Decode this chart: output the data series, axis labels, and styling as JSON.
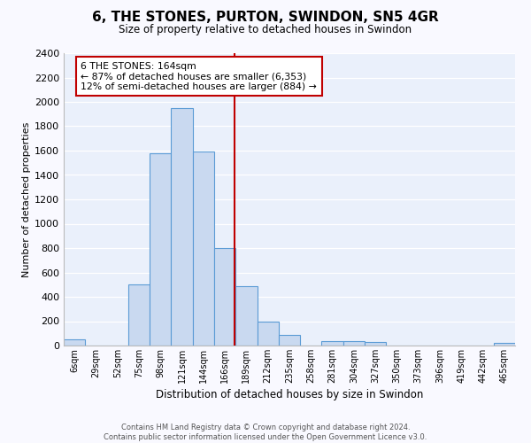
{
  "title": "6, THE STONES, PURTON, SWINDON, SN5 4GR",
  "subtitle": "Size of property relative to detached houses in Swindon",
  "xlabel": "Distribution of detached houses by size in Swindon",
  "ylabel": "Number of detached properties",
  "footer_line1": "Contains HM Land Registry data © Crown copyright and database right 2024.",
  "footer_line2": "Contains public sector information licensed under the Open Government Licence v3.0.",
  "bin_labels": [
    "6sqm",
    "29sqm",
    "52sqm",
    "75sqm",
    "98sqm",
    "121sqm",
    "144sqm",
    "166sqm",
    "189sqm",
    "212sqm",
    "235sqm",
    "258sqm",
    "281sqm",
    "304sqm",
    "327sqm",
    "350sqm",
    "373sqm",
    "396sqm",
    "419sqm",
    "442sqm",
    "465sqm"
  ],
  "bar_heights": [
    50,
    0,
    0,
    500,
    1580,
    1950,
    1590,
    800,
    490,
    200,
    90,
    0,
    35,
    35,
    30,
    0,
    0,
    0,
    0,
    0,
    20
  ],
  "bar_color": "#c9d9f0",
  "bar_edge_color": "#5b9bd5",
  "background_color": "#eaf0fb",
  "grid_color": "#ffffff",
  "vline_x": 7.45,
  "vline_color": "#c00000",
  "annotation_text": "6 THE STONES: 164sqm\n← 87% of detached houses are smaller (6,353)\n12% of semi-detached houses are larger (884) →",
  "annotation_box_color": "#ffffff",
  "annotation_box_edge": "#c00000",
  "ylim": [
    0,
    2400
  ],
  "yticks": [
    0,
    200,
    400,
    600,
    800,
    1000,
    1200,
    1400,
    1600,
    1800,
    2000,
    2200,
    2400
  ],
  "fig_bg": "#f9f9ff"
}
